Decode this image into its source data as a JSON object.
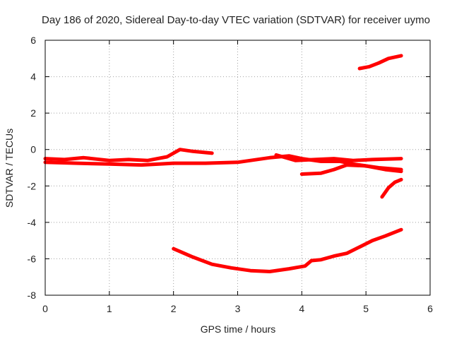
{
  "chart_data": {
    "type": "line",
    "title": "Day 186 of 2020, Sidereal Day-to-day VTEC variation (SDTVAR) for receiver uymo",
    "xlabel": "GPS time / hours",
    "ylabel": "SDTVAR / TECUs",
    "xlim": [
      0,
      6
    ],
    "ylim": [
      -8,
      6
    ],
    "xticks": [
      "0",
      "1",
      "2",
      "3",
      "4",
      "5",
      "6"
    ],
    "yticks": [
      "-8",
      "-6",
      "-4",
      "-2",
      "0",
      "2",
      "4",
      "6"
    ],
    "grid": true,
    "color": "#ff0000",
    "series": [
      {
        "points": [
          [
            0.0,
            -0.5
          ],
          [
            0.3,
            -0.55
          ],
          [
            0.6,
            -0.45
          ],
          [
            1.0,
            -0.6
          ],
          [
            1.3,
            -0.55
          ],
          [
            1.6,
            -0.6
          ],
          [
            1.9,
            -0.4
          ],
          [
            2.1,
            0.0
          ],
          [
            2.3,
            -0.1
          ],
          [
            2.6,
            -0.2
          ]
        ]
      },
      {
        "points": [
          [
            0.0,
            -0.7
          ],
          [
            0.5,
            -0.75
          ],
          [
            1.0,
            -0.8
          ],
          [
            1.5,
            -0.85
          ],
          [
            2.0,
            -0.75
          ],
          [
            2.5,
            -0.75
          ],
          [
            3.0,
            -0.7
          ],
          [
            3.5,
            -0.45
          ],
          [
            3.8,
            -0.35
          ],
          [
            4.0,
            -0.5
          ],
          [
            4.3,
            -0.65
          ],
          [
            4.6,
            -0.65
          ],
          [
            4.8,
            -0.8
          ],
          [
            5.2,
            -1.0
          ],
          [
            5.55,
            -1.1
          ]
        ]
      },
      {
        "points": [
          [
            3.6,
            -0.3
          ],
          [
            3.9,
            -0.6
          ],
          [
            4.2,
            -0.55
          ],
          [
            4.5,
            -0.5
          ],
          [
            4.8,
            -0.6
          ],
          [
            5.1,
            -0.55
          ],
          [
            5.55,
            -0.5
          ]
        ]
      },
      {
        "points": [
          [
            4.0,
            -1.35
          ],
          [
            4.3,
            -1.3
          ],
          [
            4.5,
            -1.1
          ],
          [
            4.7,
            -0.85
          ],
          [
            5.0,
            -0.9
          ],
          [
            5.3,
            -1.1
          ],
          [
            5.55,
            -1.2
          ]
        ]
      },
      {
        "points": [
          [
            2.0,
            -5.45
          ],
          [
            2.3,
            -5.9
          ],
          [
            2.6,
            -6.3
          ],
          [
            2.9,
            -6.5
          ],
          [
            3.2,
            -6.65
          ],
          [
            3.5,
            -6.7
          ],
          [
            3.8,
            -6.55
          ],
          [
            4.05,
            -6.4
          ],
          [
            4.15,
            -6.1
          ],
          [
            4.3,
            -6.05
          ],
          [
            4.5,
            -5.85
          ],
          [
            4.7,
            -5.7
          ],
          [
            4.9,
            -5.35
          ],
          [
            5.1,
            -5.0
          ],
          [
            5.3,
            -4.75
          ],
          [
            5.55,
            -4.4
          ]
        ]
      },
      {
        "points": [
          [
            4.9,
            4.45
          ],
          [
            5.05,
            4.55
          ],
          [
            5.2,
            4.75
          ],
          [
            5.35,
            5.0
          ],
          [
            5.55,
            5.15
          ]
        ]
      },
      {
        "points": [
          [
            5.25,
            -2.6
          ],
          [
            5.35,
            -2.1
          ],
          [
            5.45,
            -1.8
          ],
          [
            5.55,
            -1.65
          ]
        ]
      }
    ]
  }
}
